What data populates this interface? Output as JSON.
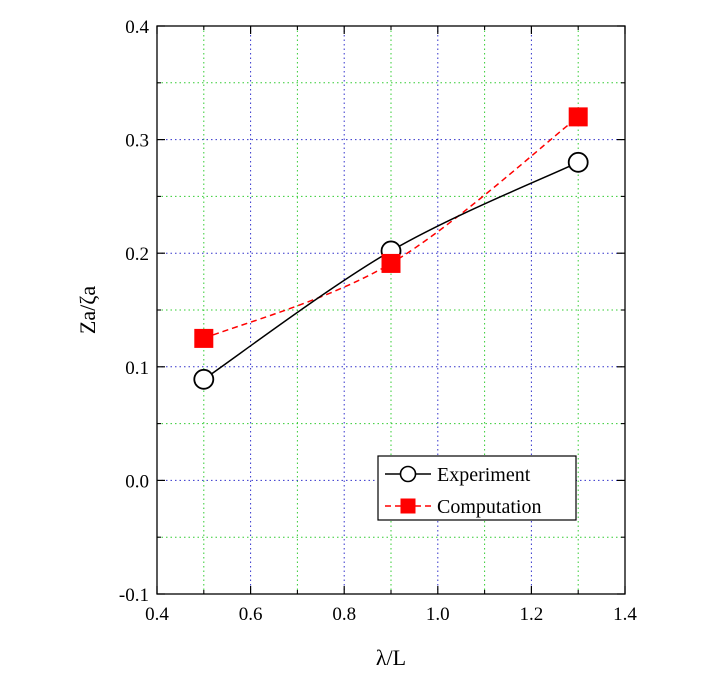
{
  "chart_data": {
    "type": "line",
    "xlabel": "λ/L",
    "ylabel": "Za/ζa",
    "xlim": [
      0.4,
      1.4
    ],
    "ylim": [
      -0.1,
      0.4
    ],
    "xticks": [
      0.4,
      0.6,
      0.8,
      1.0,
      1.2,
      1.4
    ],
    "xtick_labels": [
      "0.4",
      "0.6",
      "0.8",
      "1.0",
      "1.2",
      "1.4"
    ],
    "yticks": [
      -0.1,
      0.0,
      0.1,
      0.2,
      0.3,
      0.4
    ],
    "ytick_labels": [
      "-0.1",
      "0.0",
      "0.1",
      "0.2",
      "0.3",
      "0.4"
    ],
    "grid": true,
    "legend_position": "lower-right",
    "series": [
      {
        "name": "Experiment",
        "x": [
          0.5,
          0.9,
          1.3
        ],
        "y": [
          0.089,
          0.202,
          0.28
        ],
        "color": "#000000",
        "line_style": "solid",
        "marker": "open-circle"
      },
      {
        "name": "Computation",
        "x": [
          0.5,
          0.9,
          1.3
        ],
        "y": [
          0.125,
          0.191,
          0.32
        ],
        "color": "#ff0000",
        "line_style": "dashed",
        "marker": "filled-square"
      }
    ]
  }
}
